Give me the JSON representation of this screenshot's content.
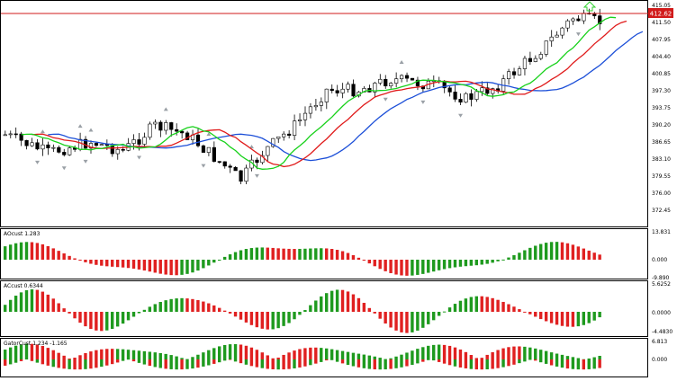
{
  "main_chart": {
    "price_axis_labels": [
      "415.05",
      "411.50",
      "407.95",
      "404.40",
      "400.85",
      "397.30",
      "393.75",
      "390.20",
      "386.65",
      "383.10",
      "379.55",
      "376.00",
      "372.45"
    ],
    "current_price": "412.62",
    "colors": {
      "bull": "#ffffff",
      "bear": "#000000",
      "price_line": "#d11a1a",
      "alligator_jaw": "#1c4fd8",
      "alligator_teeth": "#e01b1b",
      "alligator_lips": "#18d11b",
      "fractal": "#9aa0a6",
      "buy_arrow": "#2fd12f"
    },
    "signal_icon": "up-arrow-outline-icon"
  },
  "indicators": [
    {
      "label": "AOcust 1.283",
      "scale_labels": [
        "13.831",
        "0.000",
        "-9.890"
      ]
    },
    {
      "label": "ACcust 0.6344",
      "scale_labels": [
        "5.6252",
        "0.0000",
        "-4.4830"
      ]
    },
    {
      "label": "GatorCust 1.234 -1.165",
      "scale_labels": [
        "6.813",
        "0.000"
      ]
    }
  ],
  "histogram_colors": {
    "up": "#1e9a1e",
    "down": "#e02020"
  }
}
